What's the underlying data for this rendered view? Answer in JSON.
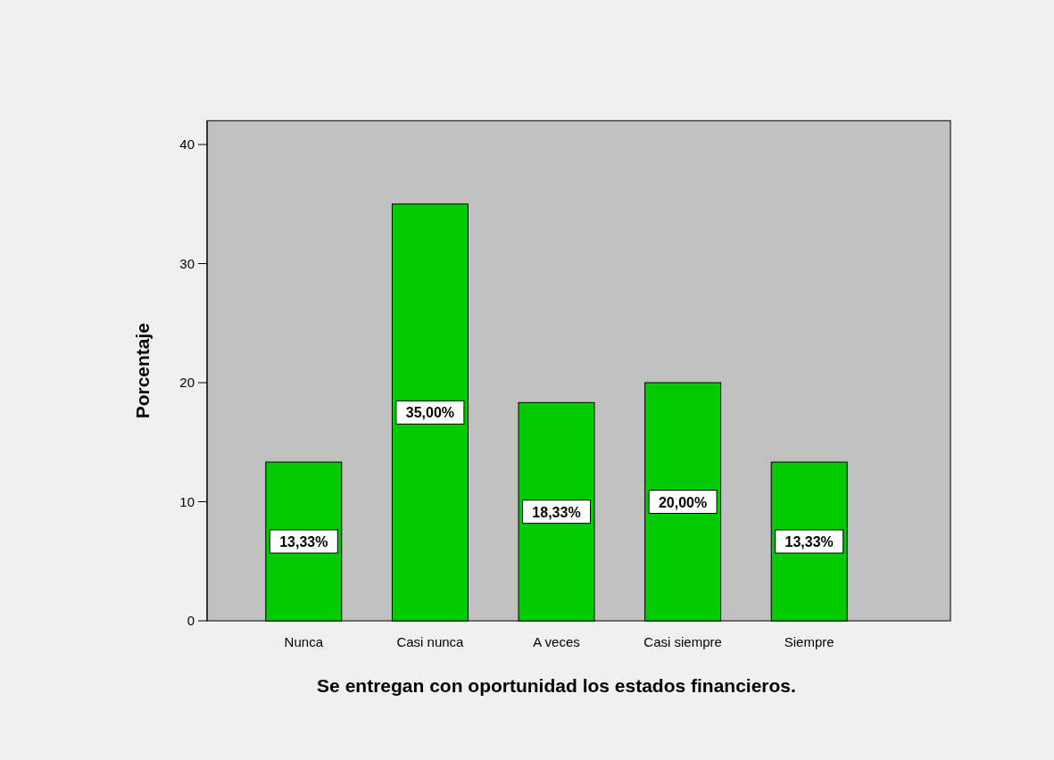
{
  "chart_data": {
    "type": "bar",
    "xlabel": "Se entregan con oportunidad los estados financieros.",
    "ylabel": "Porcentaje",
    "categories": [
      "Nunca",
      "Casi nunca",
      "A veces",
      "Casi siempre",
      "Siempre"
    ],
    "values": [
      13.33,
      35.0,
      18.33,
      20.0,
      13.33
    ],
    "value_labels": [
      "13,33%",
      "35,00%",
      "18,33%",
      "20,00%",
      "13,33%"
    ],
    "color": "#00cc00",
    "ylim": [
      0,
      42
    ],
    "yticks": [
      0,
      10,
      20,
      30,
      40
    ],
    "grid": false
  }
}
